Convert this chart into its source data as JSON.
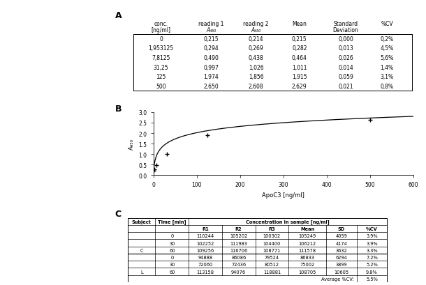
{
  "table_a_header_line1": [
    "conc.",
    "reading 1",
    "reading 2",
    "Mean",
    "Standard",
    "%CV"
  ],
  "table_a_header_line2": [
    "[ng/ml]",
    "A₄₅₀",
    "A₄₅₀",
    "",
    "Deviation",
    ""
  ],
  "table_a_data": [
    [
      "0",
      "0,215",
      "0,214",
      "0,215",
      "0,000",
      "0,2%"
    ],
    [
      "1,953125",
      "0,294",
      "0,269",
      "0,282",
      "0,013",
      "4,5%"
    ],
    [
      "7,8125",
      "0,490",
      "0,438",
      "0,464",
      "0,026",
      "5,6%"
    ],
    [
      "31,25",
      "0,997",
      "1,026",
      "1,011",
      "0,014",
      "1,4%"
    ],
    [
      "125",
      "1,974",
      "1,856",
      "1,915",
      "0,059",
      "3,1%"
    ],
    [
      "500",
      "2,650",
      "2,608",
      "2,629",
      "0,021",
      "0,8%"
    ]
  ],
  "curve_x": [
    0,
    1.953125,
    7.8125,
    31.25,
    125,
    500
  ],
  "curve_y": [
    0.215,
    0.282,
    0.464,
    1.011,
    1.915,
    2.629
  ],
  "curve_xlabel": "ApoC3 [ng/ml]",
  "curve_ylabel": "A₄₅₀",
  "curve_xlim": [
    0,
    600
  ],
  "curve_ylim": [
    0,
    3
  ],
  "curve_xticks": [
    0,
    100,
    200,
    300,
    400,
    500,
    600
  ],
  "curve_yticks": [
    0,
    0.5,
    1,
    1.5,
    2,
    2.5,
    3
  ],
  "table_c_span_header": "Concentration in sample [ng/ml]",
  "table_c_data": [
    [
      "",
      "0",
      "110244",
      "105202",
      "100302",
      "105249",
      "4059",
      "3.9%"
    ],
    [
      "C",
      "30",
      "102252",
      "111983",
      "104400",
      "106212",
      "4174",
      "3.9%"
    ],
    [
      "",
      "60",
      "109256",
      "116706",
      "108771",
      "111578",
      "3632",
      "3.3%"
    ],
    [
      "",
      "0",
      "94888",
      "86086",
      "79524",
      "86833",
      "6294",
      "7.2%"
    ],
    [
      "L",
      "30",
      "72060",
      "72436",
      "80512",
      "75002",
      "3899",
      "5.2%"
    ],
    [
      "",
      "60",
      "113158",
      "94076",
      "118881",
      "108705",
      "10605",
      "9.8%"
    ]
  ],
  "table_c_avg": "5.5%"
}
